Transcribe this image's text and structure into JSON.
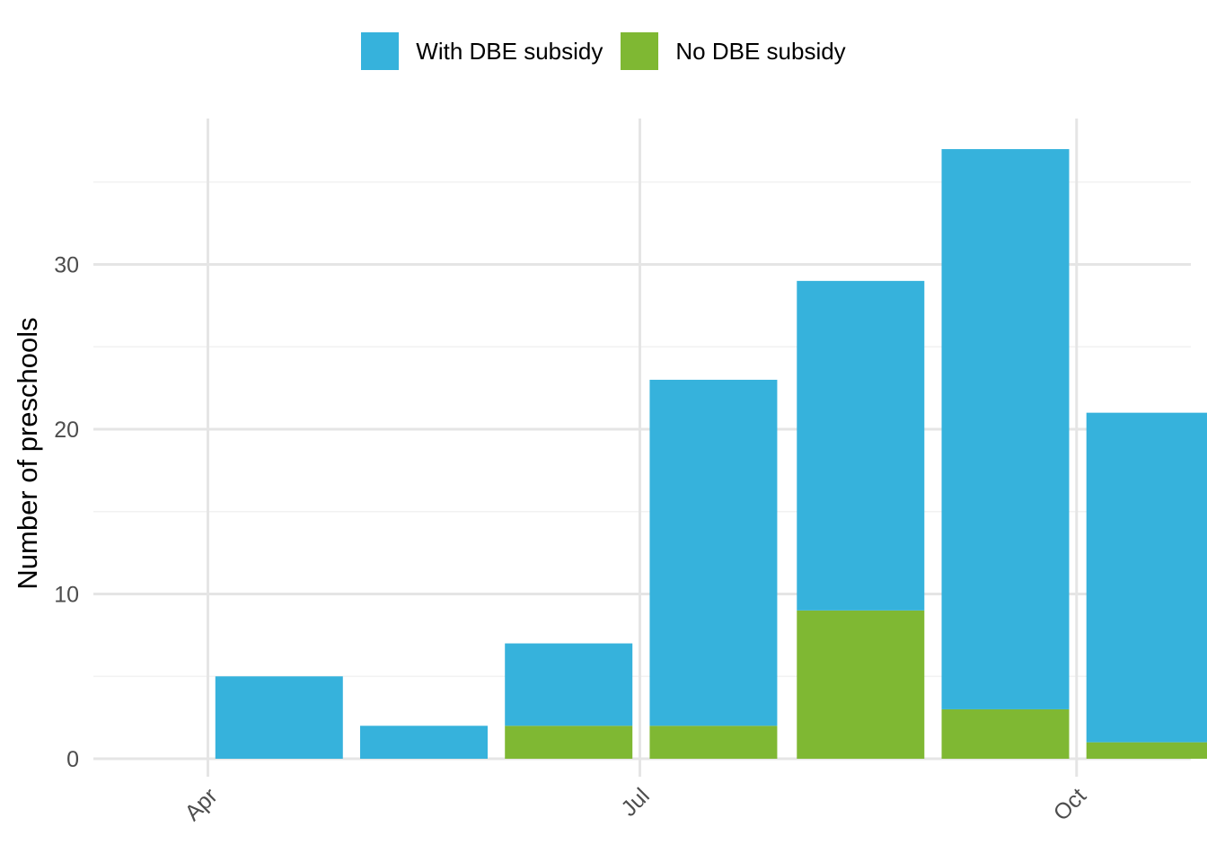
{
  "chart_data": {
    "type": "bar",
    "stacked": true,
    "x": [
      "2023-04-01",
      "2023-05-01",
      "2023-06-01",
      "2023-07-01",
      "2023-08-01",
      "2023-09-01",
      "2023-10-01"
    ],
    "x_tick_labels": [
      {
        "x": "2023-04-01",
        "label": "Apr"
      },
      {
        "x": "2023-07-01",
        "label": "Jul"
      },
      {
        "x": "2023-10-01",
        "label": "Oct"
      }
    ],
    "series": [
      {
        "name": "No DBE subsidy",
        "color": "#7fb833",
        "values": [
          0,
          0,
          2,
          2,
          9,
          3,
          1
        ]
      },
      {
        "name": "With DBE subsidy",
        "color": "#36b2dc",
        "values": [
          5,
          2,
          5,
          21,
          20,
          34,
          20
        ]
      }
    ],
    "legend_order": [
      "With DBE subsidy",
      "No DBE subsidy"
    ],
    "legend_position": "top",
    "xlabel": "",
    "ylabel": "Number of preschools",
    "ylim": [
      0,
      38.8
    ],
    "y_ticks": [
      0,
      10,
      20,
      30
    ],
    "grid": true
  }
}
